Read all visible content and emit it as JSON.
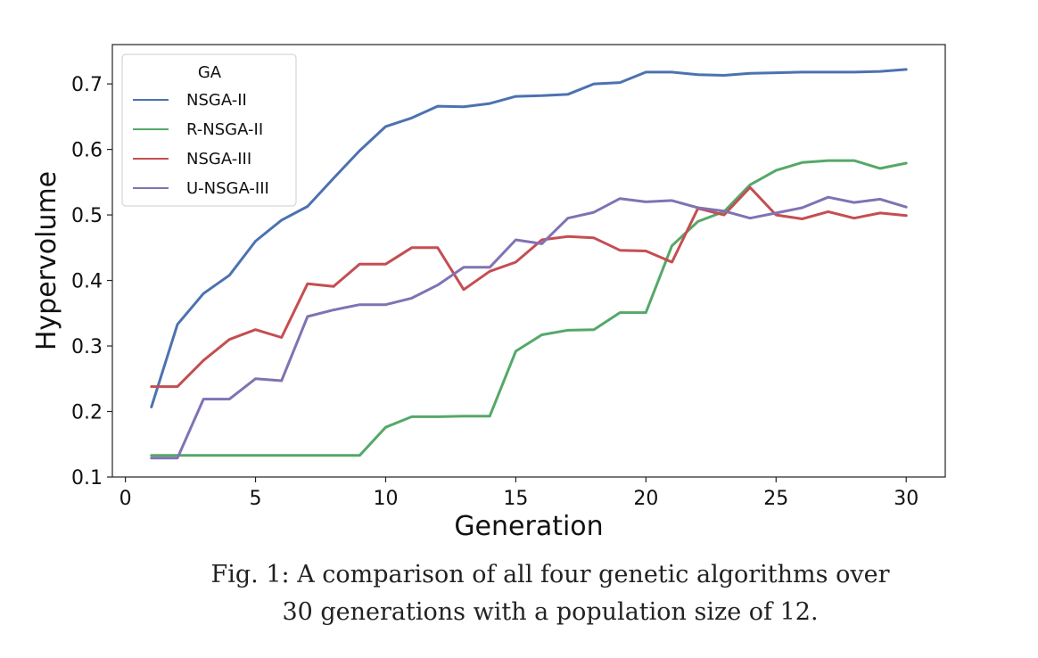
{
  "chart_data": {
    "type": "line",
    "xlabel": "Generation",
    "ylabel": "Hypervolume",
    "xlim": [
      -0.5,
      31.5
    ],
    "ylim": [
      0.1,
      0.76
    ],
    "xticks": [
      0,
      5,
      10,
      15,
      20,
      25,
      30
    ],
    "yticks": [
      0.1,
      0.2,
      0.3,
      0.4,
      0.5,
      0.6,
      0.7
    ],
    "grid": false,
    "legend": {
      "title": "GA",
      "placement": "top-left"
    },
    "x": [
      1,
      2,
      3,
      4,
      5,
      6,
      7,
      8,
      9,
      10,
      11,
      12,
      13,
      14,
      15,
      16,
      17,
      18,
      19,
      20,
      21,
      22,
      23,
      24,
      25,
      26,
      27,
      28,
      29,
      30
    ],
    "series": [
      {
        "name": "NSGA-II",
        "color": "#4c72b0",
        "values": [
          0.207,
          0.333,
          0.38,
          0.408,
          0.46,
          0.492,
          0.513,
          0.556,
          0.598,
          0.635,
          0.648,
          0.666,
          0.665,
          0.67,
          0.681,
          0.682,
          0.684,
          0.7,
          0.702,
          0.718,
          0.718,
          0.714,
          0.713,
          0.716,
          0.717,
          0.718,
          0.718,
          0.718,
          0.719,
          0.722
        ]
      },
      {
        "name": "R-NSGA-II",
        "color": "#55a868",
        "values": [
          0.133,
          0.133,
          0.133,
          0.133,
          0.133,
          0.133,
          0.133,
          0.133,
          0.133,
          0.176,
          0.192,
          0.192,
          0.193,
          0.193,
          0.292,
          0.317,
          0.324,
          0.325,
          0.351,
          0.351,
          0.453,
          0.49,
          0.505,
          0.546,
          0.568,
          0.58,
          0.583,
          0.583,
          0.571,
          0.579
        ]
      },
      {
        "name": "NSGA-III",
        "color": "#c44e52",
        "values": [
          0.238,
          0.238,
          0.278,
          0.31,
          0.325,
          0.313,
          0.395,
          0.391,
          0.425,
          0.425,
          0.45,
          0.45,
          0.386,
          0.414,
          0.428,
          0.462,
          0.467,
          0.465,
          0.446,
          0.445,
          0.428,
          0.51,
          0.5,
          0.542,
          0.5,
          0.494,
          0.505,
          0.495,
          0.503,
          0.499
        ]
      },
      {
        "name": "U-NSGA-III",
        "color": "#8172b3",
        "values": [
          0.129,
          0.129,
          0.219,
          0.219,
          0.25,
          0.247,
          0.345,
          0.355,
          0.363,
          0.363,
          0.373,
          0.393,
          0.42,
          0.42,
          0.462,
          0.456,
          0.495,
          0.504,
          0.525,
          0.52,
          0.522,
          0.511,
          0.506,
          0.495,
          0.503,
          0.511,
          0.527,
          0.519,
          0.524,
          0.512
        ]
      }
    ]
  },
  "caption": {
    "line1": "Fig. 1: A comparison of all four genetic algorithms over",
    "line2": "30 generations with a population size of 12."
  }
}
